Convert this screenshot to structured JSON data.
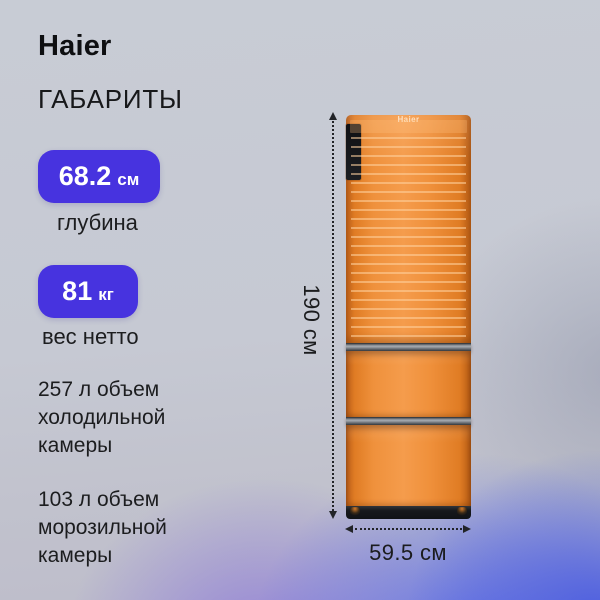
{
  "brand": "Haier",
  "title": "ГАБАРИТЫ",
  "badges": [
    {
      "value": "68.2",
      "unit": "см",
      "caption": "глубина"
    },
    {
      "value": "81",
      "unit": "кг",
      "caption": "вес нетто"
    }
  ],
  "volumes": {
    "fridge": "257 л объем\nхолодильной\nкамеры",
    "freezer": "103 л объем\nморозильной\nкамеры"
  },
  "dimensions": {
    "height": "190 см",
    "width": "59.5 см"
  },
  "fridge_graphic": {
    "door_logo": "Haier"
  },
  "colors": {
    "badge_blue": "#4733df",
    "fridge_orange": "#ee8c33",
    "glow_purple": "#8f7dd8",
    "glow_blue": "#5868e8",
    "background_gray": "#c6cad3",
    "text_dark": "#1b1c1e"
  }
}
